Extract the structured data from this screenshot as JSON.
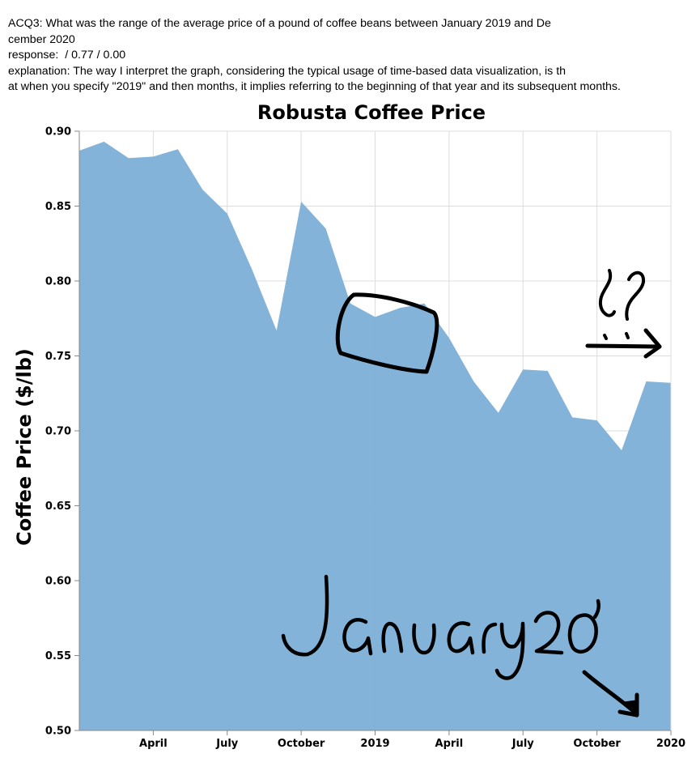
{
  "header": {
    "question_line1": "ACQ3: What was the range of the average price of a pound of coffee beans between January 2019 and De",
    "question_line2": "cember 2020",
    "response_line": "response:  / 0.77 / 0.00",
    "explanation_line1": "explanation: The way I interpret the graph, considering the typical usage of time-based data visualization, is th",
    "explanation_line2": "at when you specify \"2019\" and then months, it implies referring to the beginning of that year and its subsequent months."
  },
  "annotations": {
    "handwritten_text": "January 20'",
    "handwritten_question": "¿?"
  },
  "chart_data": {
    "type": "area",
    "title": "Robusta Coffee Price",
    "xlabel": "",
    "ylabel": "Coffee Price ($/lb)",
    "ylim": [
      0.5,
      0.9
    ],
    "yticks": [
      "0.50",
      "0.55",
      "0.60",
      "0.65",
      "0.70",
      "0.75",
      "0.80",
      "0.85",
      "0.90"
    ],
    "xticks": [
      "April",
      "July",
      "October",
      "2019",
      "April",
      "July",
      "October",
      "2020"
    ],
    "grid": true,
    "fill_color": "#80b1d8",
    "x": [
      "2018-01",
      "2018-02",
      "2018-03",
      "2018-04",
      "2018-05",
      "2018-06",
      "2018-07",
      "2018-08",
      "2018-09",
      "2018-10",
      "2018-11",
      "2018-12",
      "2019-01",
      "2019-02",
      "2019-03",
      "2019-04",
      "2019-05",
      "2019-06",
      "2019-07",
      "2019-08",
      "2019-09",
      "2019-10",
      "2019-11",
      "2019-12",
      "2020-01"
    ],
    "values": [
      0.887,
      0.893,
      0.882,
      0.883,
      0.888,
      0.861,
      0.845,
      0.808,
      0.767,
      0.853,
      0.835,
      0.785,
      0.776,
      0.782,
      0.785,
      0.762,
      0.733,
      0.712,
      0.741,
      0.74,
      0.709,
      0.707,
      0.687,
      0.733,
      0.732
    ]
  }
}
